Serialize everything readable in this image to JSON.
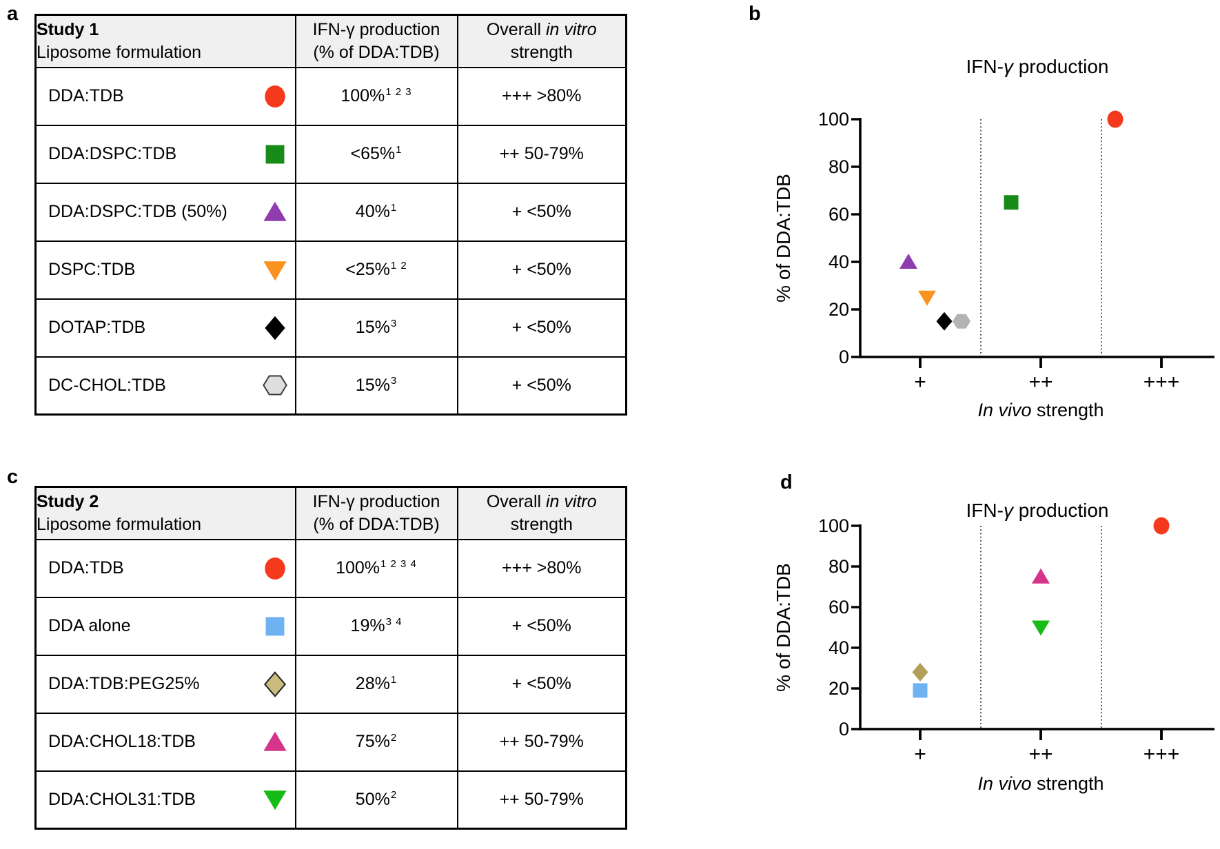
{
  "panels": {
    "a": {
      "label": "a",
      "table": {
        "header": {
          "col1_line1": "Study 1",
          "col1_line2": "Liposome formulation",
          "col2_line1": "IFN-γ production",
          "col2_line2": "(% of DDA:TDB)",
          "col3_pre": "Overall ",
          "col3_italic": "in vitro",
          "col3_line2": "strength"
        },
        "rows": [
          {
            "formulation": "DDA:TDB",
            "marker": "red-circle",
            "value": "100%",
            "sup": "1 2 3",
            "strength": "+++ >80%"
          },
          {
            "formulation": "DDA:DSPC:TDB",
            "marker": "green-square",
            "value": "<65%",
            "sup": "1",
            "strength": "++ 50-79%"
          },
          {
            "formulation": "DDA:DSPC:TDB (50%)",
            "marker": "purple-triangle-up",
            "value": "40%",
            "sup": "1",
            "strength": "+ <50%"
          },
          {
            "formulation": "DSPC:TDB",
            "marker": "orange-triangle-down",
            "value": "<25%",
            "sup": "1 2",
            "strength": "+ <50%"
          },
          {
            "formulation": "DOTAP:TDB",
            "marker": "black-diamond",
            "value": "15%",
            "sup": "3",
            "strength": "+ <50%"
          },
          {
            "formulation": "DC-CHOL:TDB",
            "marker": "gray-hexagon",
            "value": "15%",
            "sup": "3",
            "strength": "+ <50%"
          }
        ]
      }
    },
    "b": {
      "label": "b"
    },
    "c": {
      "label": "c",
      "table": {
        "header": {
          "col1_line1": "Study 2",
          "col1_line2": "Liposome formulation",
          "col2_line1": "IFN-γ production",
          "col2_line2": "(% of DDA:TDB)",
          "col3_pre": "Overall ",
          "col3_italic": "in vitro",
          "col3_line2": "strength"
        },
        "rows": [
          {
            "formulation": "DDA:TDB",
            "marker": "red-circle",
            "value": "100%",
            "sup": "1 2 3 4",
            "strength": "+++ >80%"
          },
          {
            "formulation": "DDA alone",
            "marker": "blue-square",
            "value": "19%",
            "sup": "3 4",
            "strength": "+ <50%"
          },
          {
            "formulation": "DDA:TDB:PEG25%",
            "marker": "tan-diamond",
            "value": "28%",
            "sup": "1",
            "strength": "+ <50%"
          },
          {
            "formulation": "DDA:CHOL18:TDB",
            "marker": "pink-triangle-up",
            "value": "75%",
            "sup": "2",
            "strength": "++ 50-79%"
          },
          {
            "formulation": "DDA:CHOL31:TDB",
            "marker": "green-triangle-down",
            "value": "50%",
            "sup": "2",
            "strength": "++ 50-79%"
          }
        ]
      }
    },
    "d": {
      "label": "d"
    }
  },
  "markers": {
    "red-circle": {
      "shape": "circle",
      "fill": "#f5391d",
      "stroke": "none",
      "stroke_width": 0
    },
    "green-square": {
      "shape": "square",
      "fill": "#178a17",
      "stroke": "none",
      "stroke_width": 0
    },
    "purple-triangle-up": {
      "shape": "triangle-up",
      "fill": "#8e3cae",
      "stroke": "none",
      "stroke_width": 0
    },
    "orange-triangle-down": {
      "shape": "triangle-down",
      "fill": "#f9921f",
      "stroke": "none",
      "stroke_width": 0
    },
    "black-diamond": {
      "shape": "diamond",
      "fill": "#000000",
      "stroke": "none",
      "stroke_width": 0
    },
    "gray-hexagon": {
      "shape": "hexagon",
      "fill": "#b3b3b3",
      "stroke": "none",
      "stroke_width": 0,
      "table_fill": "#dfdfdf",
      "table_stroke": "#3c3c3c",
      "table_stroke_width": 2
    },
    "blue-square": {
      "shape": "square",
      "fill": "#6fb2f2",
      "stroke": "none",
      "stroke_width": 0
    },
    "tan-diamond": {
      "shape": "diamond",
      "fill": "#b2a058",
      "stroke": "none",
      "stroke_width": 0,
      "table_fill": "#cbbb80",
      "table_stroke": "#222222",
      "table_stroke_width": 2
    },
    "pink-triangle-up": {
      "shape": "triangle-up",
      "fill": "#d63488",
      "stroke": "none",
      "stroke_width": 0
    },
    "green-triangle-down": {
      "shape": "triangle-down",
      "fill": "#16bb16",
      "stroke": "none",
      "stroke_width": 0
    }
  },
  "chart_data": [
    {
      "id": "b",
      "type": "scatter",
      "title": "IFN-γ production",
      "ylabel": "% of DDA:TDB",
      "xlabel_italic": "In vivo",
      "xlabel_rest": " strength",
      "ylim": [
        0,
        100
      ],
      "yticks": [
        0,
        20,
        40,
        60,
        80,
        100
      ],
      "categories": [
        "+",
        "++",
        "+++"
      ],
      "separators": "dotted vertical lines between categories",
      "points": [
        {
          "name": "DDA:DSPC:TDB (50%)",
          "marker": "purple-triangle-up",
          "category": "+",
          "cat_index": 0,
          "value": 40,
          "jitter": -17
        },
        {
          "name": "DSPC:TDB",
          "marker": "orange-triangle-down",
          "category": "+",
          "cat_index": 0,
          "value": 25,
          "jitter": 10
        },
        {
          "name": "DOTAP:TDB",
          "marker": "black-diamond",
          "category": "+",
          "cat_index": 0,
          "value": 15,
          "jitter": 35
        },
        {
          "name": "DC-CHOL:TDB",
          "marker": "gray-hexagon",
          "category": "+",
          "cat_index": 0,
          "value": 15,
          "jitter": 60
        },
        {
          "name": "DDA:DSPC:TDB",
          "marker": "green-square",
          "category": "++",
          "cat_index": 1,
          "value": 65,
          "jitter": -43
        },
        {
          "name": "DDA:TDB",
          "marker": "red-circle",
          "category": "+++",
          "cat_index": 2,
          "value": 100,
          "jitter": -67
        }
      ]
    },
    {
      "id": "d",
      "type": "scatter",
      "title": "IFN-γ production",
      "ylabel": "% of DDA:TDB",
      "xlabel_italic": "In vivo",
      "xlabel_rest": " strength",
      "ylim": [
        0,
        100
      ],
      "yticks": [
        0,
        20,
        40,
        60,
        80,
        100
      ],
      "categories": [
        "+",
        "++",
        "+++"
      ],
      "separators": "dotted vertical lines between categories",
      "points": [
        {
          "name": "DDA:TDB:PEG25%",
          "marker": "tan-diamond",
          "category": "+",
          "cat_index": 0,
          "value": 28,
          "jitter": 0
        },
        {
          "name": "DDA alone",
          "marker": "blue-square",
          "category": "+",
          "cat_index": 0,
          "value": 19,
          "jitter": 0
        },
        {
          "name": "DDA:CHOL18:TDB",
          "marker": "pink-triangle-up",
          "category": "++",
          "cat_index": 1,
          "value": 75,
          "jitter": 0
        },
        {
          "name": "DDA:CHOL31:TDB",
          "marker": "green-triangle-down",
          "category": "++",
          "cat_index": 1,
          "value": 50,
          "jitter": 0
        },
        {
          "name": "DDA:TDB",
          "marker": "red-circle",
          "category": "+++",
          "cat_index": 2,
          "value": 100,
          "jitter": 0
        }
      ]
    }
  ]
}
